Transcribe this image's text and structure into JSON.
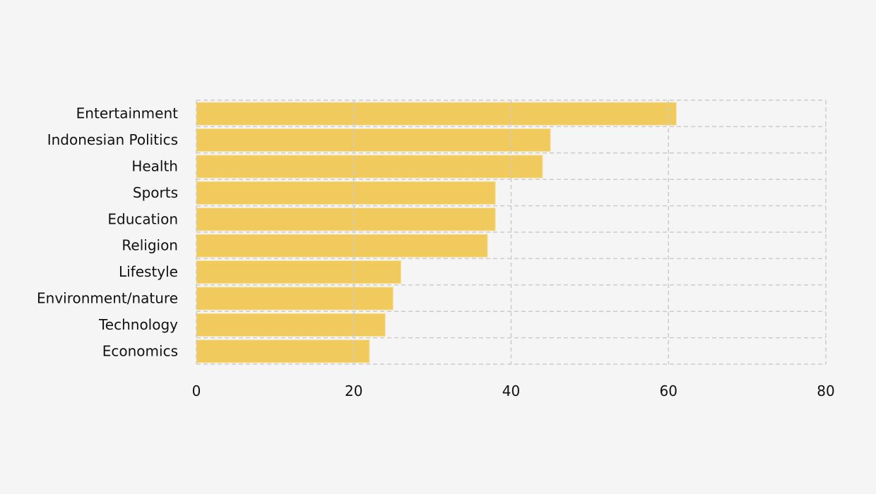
{
  "chart_data": {
    "type": "bar",
    "orientation": "horizontal",
    "title": "",
    "xlabel": "",
    "ylabel": "",
    "categories": [
      "Entertainment",
      "Indonesian Politics",
      "Health",
      "Sports",
      "Education",
      "Religion",
      "Lifestyle",
      "Environment/nature",
      "Technology",
      "Economics"
    ],
    "values": [
      61,
      45,
      44,
      38,
      38,
      37,
      26,
      25,
      24,
      22
    ],
    "xlim": [
      0,
      80
    ],
    "xticks": [
      0,
      20,
      40,
      60,
      80
    ],
    "grid": true,
    "grid_style": "dashed",
    "bar_color": "#f0c651",
    "grid_color": "#cccccc",
    "background": "#f5f5f5"
  }
}
